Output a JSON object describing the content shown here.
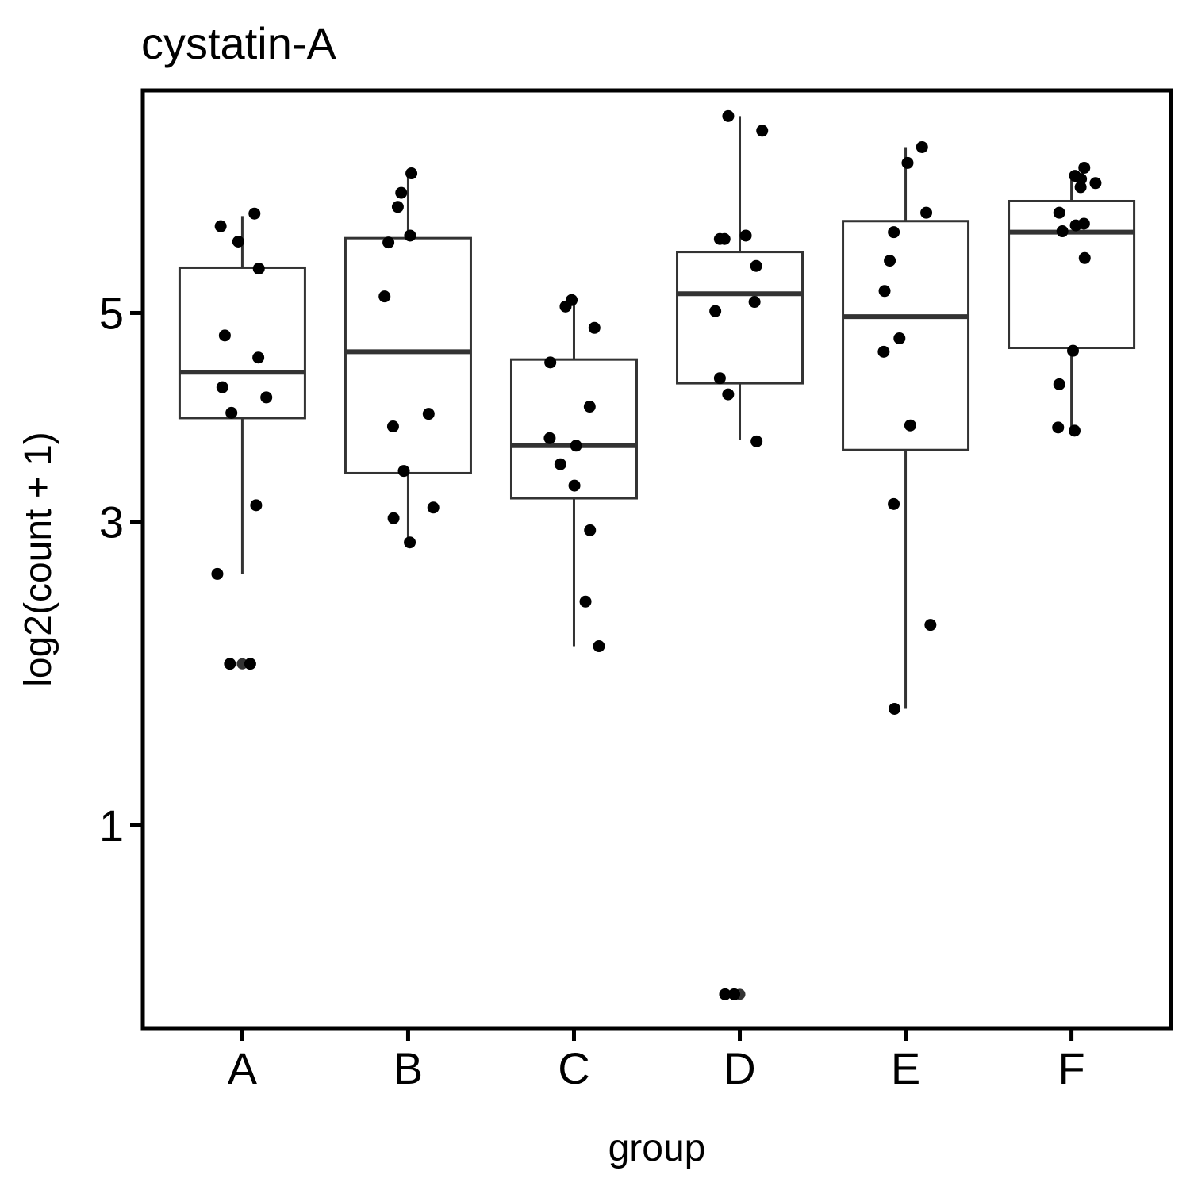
{
  "chart_data": {
    "type": "boxplot",
    "title": "cystatin-A",
    "xlabel": "group",
    "ylabel": "log2(count + 1)",
    "y_scale": "sqrt",
    "y_ticks": [
      1,
      3,
      5
    ],
    "ylim": [
      0.26,
      7.69
    ],
    "grid": false,
    "categories": [
      "A",
      "B",
      "C",
      "D",
      "E",
      "F"
    ],
    "boxes": [
      {
        "group": "A",
        "whisker_low": 2.58,
        "q1": 3.93,
        "median": 4.38,
        "q3": 5.5,
        "whisker_high": 6.1,
        "outliers": [
          1.93
        ]
      },
      {
        "group": "B",
        "whisker_low": 2.83,
        "q1": 3.42,
        "median": 4.59,
        "q3": 5.84,
        "whisker_high": 6.59,
        "outliers": []
      },
      {
        "group": "C",
        "whisker_low": 2.05,
        "q1": 3.2,
        "median": 3.67,
        "q3": 4.51,
        "whisker_high": 5.14,
        "outliers": []
      },
      {
        "group": "D",
        "whisker_low": 3.72,
        "q1": 4.27,
        "median": 5.21,
        "q3": 5.68,
        "whisker_high": 7.35,
        "outliers": [
          0.35
        ]
      },
      {
        "group": "E",
        "whisker_low": 1.64,
        "q1": 3.63,
        "median": 4.96,
        "q3": 6.04,
        "whisker_high": 6.95,
        "outliers": []
      },
      {
        "group": "F",
        "whisker_low": 3.84,
        "q1": 4.63,
        "median": 5.91,
        "q3": 6.28,
        "whisker_high": 6.54,
        "outliers": []
      }
    ],
    "points": [
      {
        "group": "A",
        "values": [
          6.13,
          5.98,
          5.8,
          5.49,
          4.76,
          4.53,
          4.23,
          4.13,
          3.98,
          3.14,
          2.58,
          1.93,
          1.93
        ]
      },
      {
        "group": "B",
        "values": [
          6.62,
          6.38,
          6.21,
          5.87,
          5.79,
          5.18,
          3.97,
          3.85,
          3.44,
          3.12,
          3.03,
          2.83
        ]
      },
      {
        "group": "C",
        "values": [
          5.14,
          5.07,
          4.84,
          4.48,
          4.04,
          3.74,
          3.67,
          3.5,
          3.31,
          2.93,
          2.37,
          2.05
        ]
      },
      {
        "group": "D",
        "values": [
          7.35,
          7.16,
          5.87,
          5.83,
          5.83,
          5.52,
          5.12,
          5.02,
          4.32,
          4.16,
          3.71,
          0.35,
          0.35
        ]
      },
      {
        "group": "E",
        "values": [
          6.95,
          6.75,
          6.14,
          5.91,
          5.58,
          5.24,
          4.73,
          4.59,
          3.86,
          3.15,
          2.2,
          1.64
        ]
      },
      {
        "group": "F",
        "values": [
          6.69,
          6.59,
          6.55,
          6.5,
          6.45,
          6.14,
          6.01,
          5.99,
          5.92,
          5.61,
          4.6,
          4.26,
          3.84,
          3.81
        ]
      }
    ]
  }
}
